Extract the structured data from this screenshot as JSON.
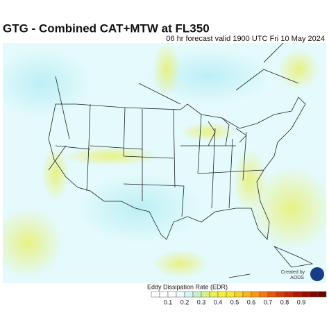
{
  "header": {
    "title": "GTG - Combined CAT+MTW at FL350",
    "subtitle": "06 hr forecast valid 1900 UTC Fri 10 May 2024"
  },
  "legend": {
    "label": "Eddy Dissipation Rate (EDR)",
    "ticks": [
      0.1,
      0.2,
      0.3,
      0.4,
      0.5,
      0.6,
      0.7,
      0.8,
      0.9
    ],
    "colors": [
      "#ffffff",
      "#ffffff",
      "#ffffff",
      "#f0fcff",
      "#d4f6fb",
      "#c8f0c8",
      "#d8f08c",
      "#e6f05a",
      "#f0f03c",
      "#f8e830",
      "#f8d028",
      "#f8b420",
      "#f89818",
      "#f07810",
      "#e85808",
      "#d83c04",
      "#c82800",
      "#b01800",
      "#981000",
      "#800800",
      "#680400"
    ]
  },
  "credit": {
    "line1": "Created by",
    "line2": "AODS"
  }
}
